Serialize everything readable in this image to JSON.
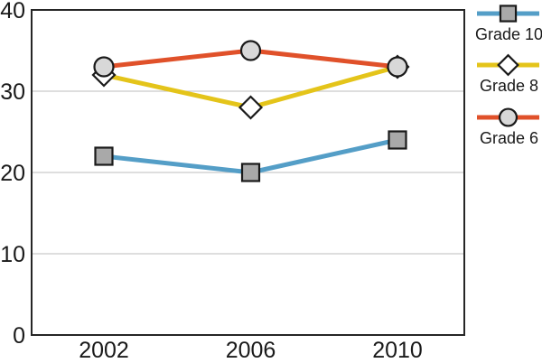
{
  "chart_data": {
    "type": "line",
    "title": "",
    "xlabel": "",
    "ylabel": "",
    "x_categories": [
      "2002",
      "2006",
      "2010"
    ],
    "yticks": [
      0,
      10,
      20,
      30,
      40
    ],
    "ylim": [
      0,
      40
    ],
    "grid": "horizontal",
    "legend_position": "right-top",
    "series": [
      {
        "name": "Grade 10",
        "marker": "square",
        "line_color": "#549EC7",
        "marker_fill": "#A9A9A9",
        "values": [
          22,
          20,
          24
        ]
      },
      {
        "name": "Grade 8",
        "marker": "diamond",
        "line_color": "#E4C41A",
        "marker_fill": "#FFFFFF",
        "values": [
          32,
          28,
          33
        ]
      },
      {
        "name": "Grade 6",
        "marker": "circle",
        "line_color": "#E0512A",
        "marker_fill": "#D8D8D8",
        "values": [
          33,
          35,
          33
        ]
      }
    ],
    "legend_order": [
      "Grade 10",
      "Grade 8",
      "Grade 6"
    ]
  },
  "colors": {
    "background": "#FFFFFF",
    "axis_border": "#262626",
    "gridline": "#C9C9C9",
    "text": "#1A1A1A",
    "marker_stroke": "#1A1A1A"
  }
}
